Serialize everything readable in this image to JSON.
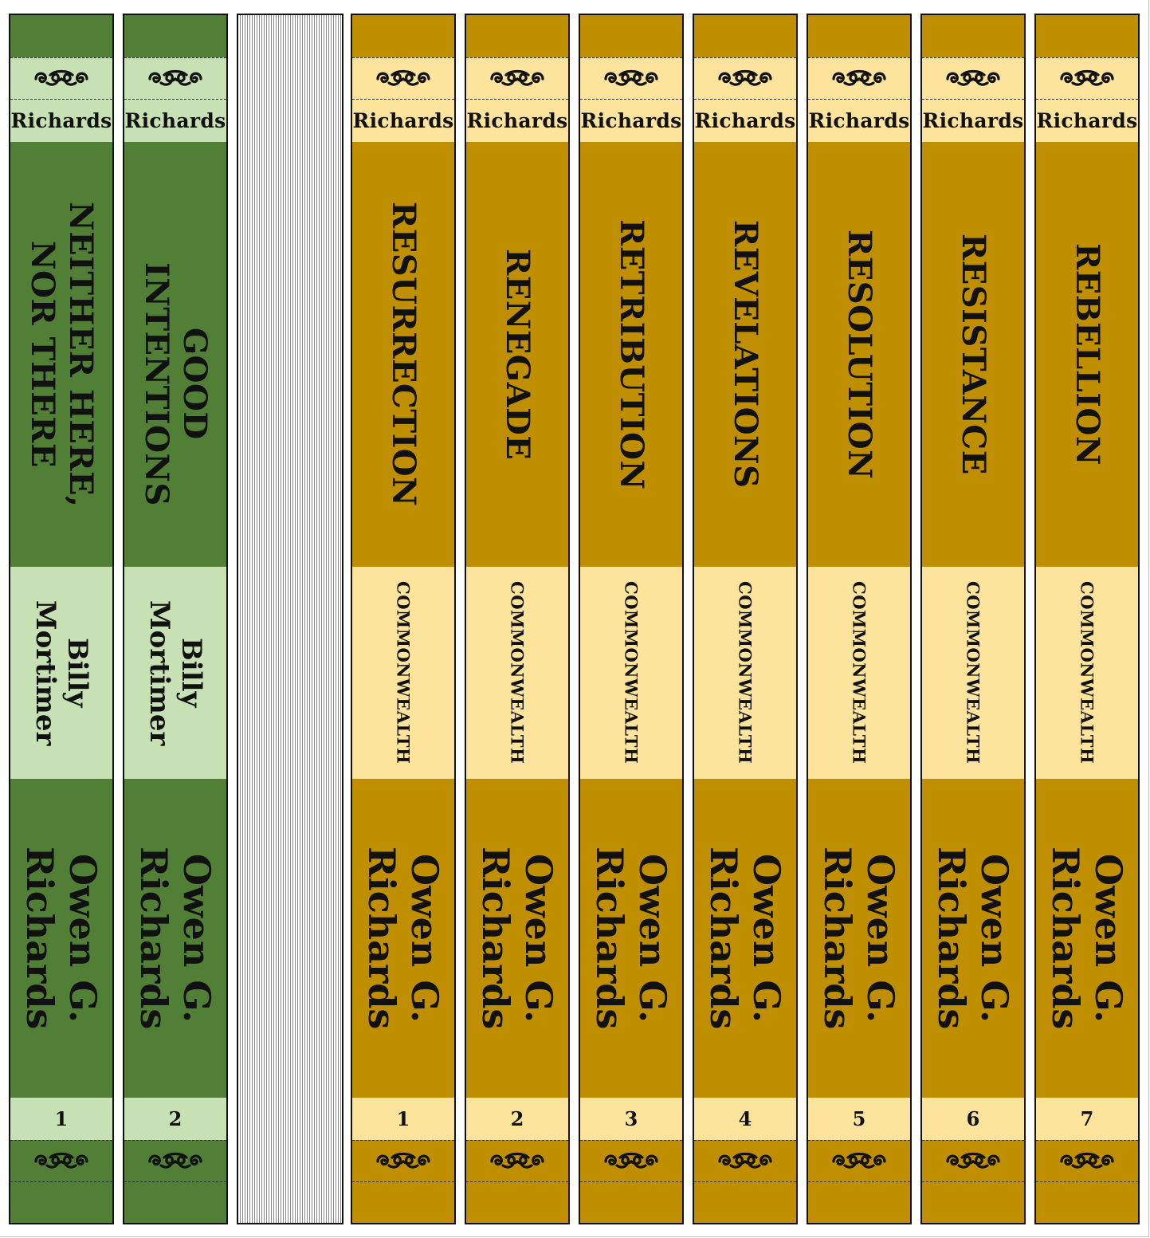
{
  "palette": {
    "green_dark": "#517f36",
    "green_light": "#c7e0b4",
    "gold_dark": "#c08f00",
    "gold_light": "#fde49c",
    "text": "#111111"
  },
  "ornament_icon": "fleuron-scroll-ornament",
  "books": [
    {
      "series_label": "Richards",
      "title": "NEITHER HERE, NOR THERE",
      "subtitle": "Billy Mortimer",
      "author": "Owen G. Richards",
      "number": "1",
      "theme": "green"
    },
    {
      "series_label": "Richards",
      "title": "GOOD INTENTIONS",
      "subtitle": "Billy Mortimer",
      "author": "Owen G. Richards",
      "number": "2",
      "theme": "green"
    },
    {
      "series_label": "Richards",
      "title": "RESURRECTION",
      "subtitle": "COMMONWEALTH",
      "author": "Owen G. Richards",
      "number": "1",
      "theme": "gold"
    },
    {
      "series_label": "Richards",
      "title": "RENEGADE",
      "subtitle": "COMMONWEALTH",
      "author": "Owen G. Richards",
      "number": "2",
      "theme": "gold"
    },
    {
      "series_label": "Richards",
      "title": "RETRIBUTION",
      "subtitle": "COMMONWEALTH",
      "author": "Owen G. Richards",
      "number": "3",
      "theme": "gold"
    },
    {
      "series_label": "Richards",
      "title": "REVELATIONS",
      "subtitle": "COMMONWEALTH",
      "author": "Owen G. Richards",
      "number": "4",
      "theme": "gold"
    },
    {
      "series_label": "Richards",
      "title": "RESOLUTION",
      "subtitle": "COMMONWEALTH",
      "author": "Owen G. Richards",
      "number": "5",
      "theme": "gold"
    },
    {
      "series_label": "Richards",
      "title": "RESISTANCE",
      "subtitle": "COMMONWEALTH",
      "author": "Owen G. Richards",
      "number": "6",
      "theme": "gold"
    },
    {
      "series_label": "Richards",
      "title": "REBELLION",
      "subtitle": "COMMONWEALTH",
      "author": "Owen G. Richards",
      "number": "7",
      "theme": "gold"
    }
  ]
}
